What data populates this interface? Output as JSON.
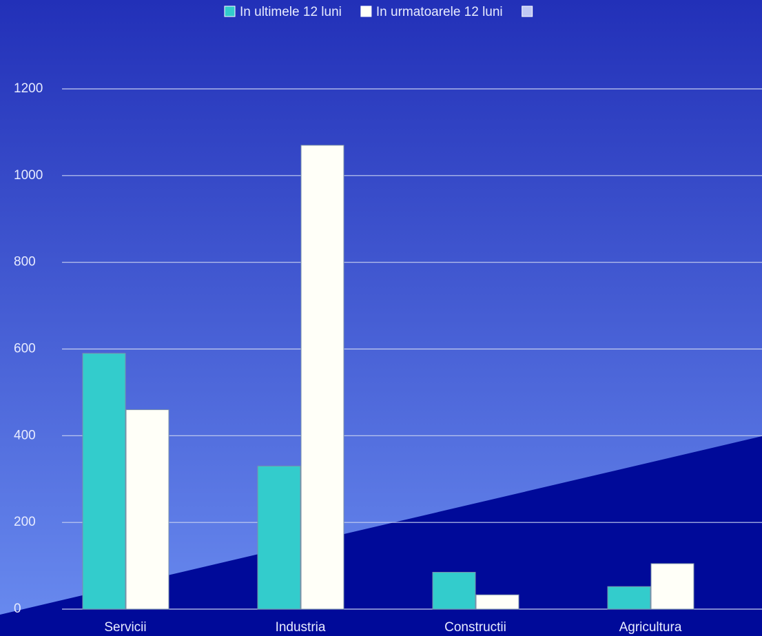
{
  "chart_data": {
    "type": "bar",
    "categories": [
      "Servicii",
      "Industria",
      "Constructii",
      "Agricultura"
    ],
    "series": [
      {
        "name": "In ultimele 12 luni",
        "color": "#33cccc",
        "values": [
          590,
          330,
          85,
          52
        ]
      },
      {
        "name": "In urmatoarele 12 luni",
        "color": "#fffff8",
        "values": [
          460,
          1070,
          33,
          105
        ]
      },
      {
        "name": null,
        "color": "#c0c8f4",
        "values": [
          null,
          null,
          null,
          null
        ]
      }
    ],
    "ylim": [
      0,
      1200
    ],
    "yticks": [
      0,
      200,
      400,
      600,
      800,
      1000,
      1200
    ],
    "grid": true,
    "legend": "top"
  }
}
